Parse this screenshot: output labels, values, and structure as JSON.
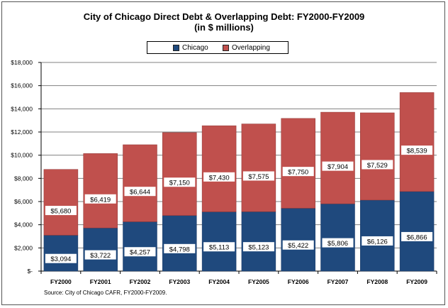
{
  "title": "City of Chicago Direct Debt & Overlapping Debt: FY2000-FY2009",
  "subtitle": "(in $ millions)",
  "source": "Source:  City of Chicago CAFR, FY2000-FY2009.",
  "legend": {
    "chicago": "Chicago",
    "overlapping": "Overlapping"
  },
  "colors": {
    "chicago": "#1F497D",
    "overlapping": "#C0504D",
    "label_bg": "#ffffff",
    "grid": "#808080"
  },
  "chart_data": {
    "type": "bar",
    "stacked": true,
    "categories": [
      "FY2000",
      "FY2001",
      "FY2002",
      "FY2003",
      "FY2004",
      "FY2005",
      "FY2006",
      "FY2007",
      "FY2008",
      "FY2009"
    ],
    "series": [
      {
        "name": "Chicago",
        "values": [
          3094,
          3722,
          4257,
          4798,
          5113,
          5123,
          5422,
          5806,
          6126,
          6866
        ],
        "labels": [
          "$3,094",
          "$3,722",
          "$4,257",
          "$4,798",
          "$5,113",
          "$5,123",
          "$5,422",
          "$5,806",
          "$6,126",
          "$6,866"
        ]
      },
      {
        "name": "Overlapping",
        "values": [
          5680,
          6419,
          6644,
          7150,
          7430,
          7575,
          7750,
          7904,
          7529,
          8539
        ],
        "labels": [
          "$5,680",
          "$6,419",
          "$6,644",
          "$7,150",
          "$7,430",
          "$7,575",
          "$7,750",
          "$7,904",
          "$7,529",
          "$8,539"
        ]
      }
    ],
    "ylim": [
      0,
      18000
    ],
    "yticks": [
      0,
      2000,
      4000,
      6000,
      8000,
      10000,
      12000,
      14000,
      16000,
      18000
    ],
    "ytick_labels": [
      "$-",
      "$2,000",
      "$4,000",
      "$6,000",
      "$8,000",
      "$10,000",
      "$12,000",
      "$14,000",
      "$16,000",
      "$18,000"
    ],
    "grid": true,
    "legend_position": "top"
  }
}
